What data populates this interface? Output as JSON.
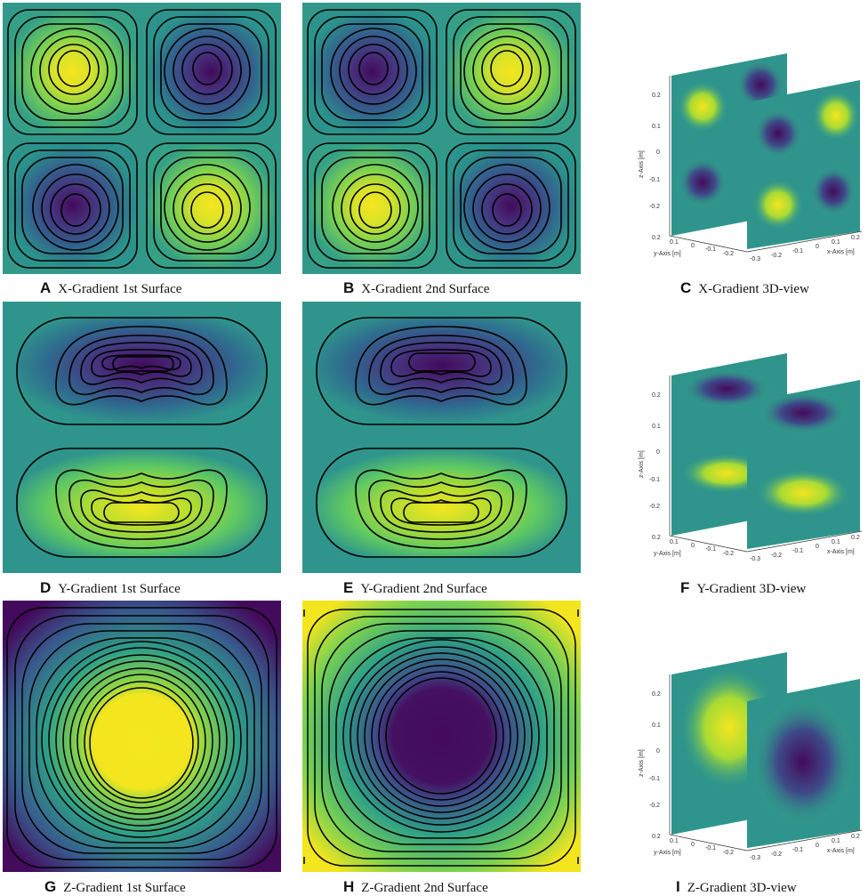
{
  "colors": {
    "background": "#3a9b8b",
    "yellow": "#f3e51e",
    "yellow_green": "#9fd83a",
    "green": "#5ec962",
    "teal": "#2a9d8c",
    "blue": "#3b518b",
    "purple": "#44095c",
    "dark_purple": "#3b0a55",
    "contour": "#000000"
  },
  "panels": [
    {
      "letter": "A",
      "caption": "X-Gradient 1st Surface"
    },
    {
      "letter": "B",
      "caption": "X-Gradient 2nd Surface"
    },
    {
      "letter": "C",
      "caption": "X-Gradient 3D-view"
    },
    {
      "letter": "D",
      "caption": "Y-Gradient 1st Surface"
    },
    {
      "letter": "E",
      "caption": "Y-Gradient 2nd Surface"
    },
    {
      "letter": "F",
      "caption": "Y-Gradient 3D-view"
    },
    {
      "letter": "G",
      "caption": "Z-Gradient 1st Surface"
    },
    {
      "letter": "H",
      "caption": "Z-Gradient 2nd Surface"
    },
    {
      "letter": "I",
      "caption": "Z-Gradient 3D-view"
    }
  ],
  "view3d": {
    "z_axis_label": "z-Axis [m]",
    "y_axis_label": "y-Axis [m]",
    "x_axis_label": "x-Axis [m]",
    "z_ticks": [
      "0.2",
      "0.1",
      "0",
      "-0.1",
      "-0.2"
    ],
    "y_ticks": [
      "0.2",
      "0.1",
      "0",
      "-0.1",
      "-0.2"
    ],
    "x_ticks": [
      "-0.3",
      "-0.2",
      "-0.1",
      "0",
      "0.1",
      "0.2"
    ]
  }
}
